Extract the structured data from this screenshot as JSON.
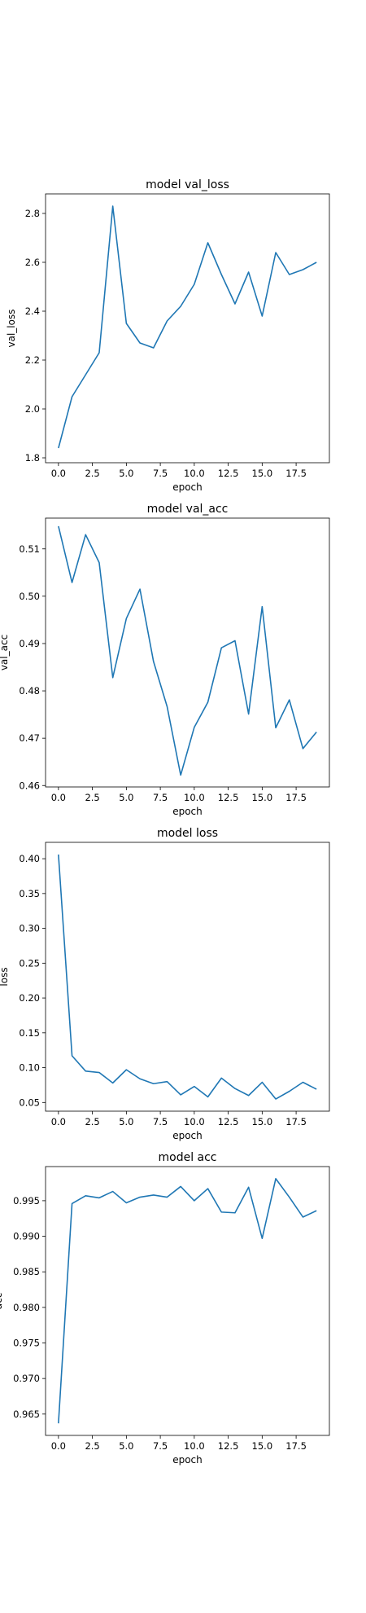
{
  "chart_data": [
    {
      "type": "line",
      "title": "model val_loss",
      "xlabel": "epoch",
      "ylabel": "val_loss",
      "xlim": [
        -0.95,
        19.95
      ],
      "ylim": [
        1.78,
        2.88
      ],
      "xticks": [
        0,
        2.5,
        5,
        7.5,
        10,
        12.5,
        15,
        17.5
      ],
      "xtick_labels": [
        "0.0",
        "2.5",
        "5.0",
        "7.5",
        "10.0",
        "12.5",
        "15.0",
        "17.5"
      ],
      "yticks": [
        1.8,
        2.0,
        2.2,
        2.4,
        2.6,
        2.8
      ],
      "ytick_labels": [
        "1.8",
        "2.0",
        "2.2",
        "2.4",
        "2.6",
        "2.8"
      ],
      "grid": false,
      "line_color": "#1f77b4",
      "x": [
        0,
        1,
        2,
        3,
        4,
        5,
        6,
        7,
        8,
        9,
        10,
        11,
        12,
        13,
        14,
        15,
        16,
        17,
        18,
        19
      ],
      "values": [
        1.84,
        2.05,
        2.14,
        2.23,
        2.83,
        2.35,
        2.27,
        2.25,
        2.36,
        2.42,
        2.51,
        2.68,
        2.55,
        2.43,
        2.56,
        2.38,
        2.64,
        2.55,
        2.57,
        2.6
      ]
    },
    {
      "type": "line",
      "title": "model val_acc",
      "xlabel": "epoch",
      "ylabel": "val_acc",
      "xlim": [
        -0.95,
        19.95
      ],
      "ylim": [
        0.4597,
        0.5165
      ],
      "xticks": [
        0,
        2.5,
        5,
        7.5,
        10,
        12.5,
        15,
        17.5
      ],
      "xtick_labels": [
        "0.0",
        "2.5",
        "5.0",
        "7.5",
        "10.0",
        "12.5",
        "15.0",
        "17.5"
      ],
      "yticks": [
        0.46,
        0.47,
        0.48,
        0.49,
        0.5,
        0.51
      ],
      "ytick_labels": [
        "0.46",
        "0.47",
        "0.48",
        "0.49",
        "0.50",
        "0.51"
      ],
      "grid": false,
      "line_color": "#1f77b4",
      "x": [
        0,
        1,
        2,
        3,
        4,
        5,
        6,
        7,
        8,
        9,
        10,
        11,
        12,
        13,
        14,
        15,
        16,
        17,
        18,
        19
      ],
      "values": [
        0.5148,
        0.5029,
        0.513,
        0.5071,
        0.4828,
        0.4953,
        0.5015,
        0.4862,
        0.4767,
        0.4622,
        0.4723,
        0.4776,
        0.4891,
        0.4906,
        0.4751,
        0.4978,
        0.4722,
        0.4781,
        0.4678,
        0.4713
      ]
    },
    {
      "type": "line",
      "title": "model loss",
      "xlabel": "epoch",
      "ylabel": "loss",
      "xlim": [
        -0.95,
        19.95
      ],
      "ylim": [
        0.0375,
        0.4235
      ],
      "xticks": [
        0,
        2.5,
        5,
        7.5,
        10,
        12.5,
        15,
        17.5
      ],
      "xtick_labels": [
        "0.0",
        "2.5",
        "5.0",
        "7.5",
        "10.0",
        "12.5",
        "15.0",
        "17.5"
      ],
      "yticks": [
        0.05,
        0.1,
        0.15,
        0.2,
        0.25,
        0.3,
        0.35,
        0.4
      ],
      "ytick_labels": [
        "0.05",
        "0.10",
        "0.15",
        "0.20",
        "0.25",
        "0.30",
        "0.35",
        "0.40"
      ],
      "grid": false,
      "line_color": "#1f77b4",
      "x": [
        0,
        1,
        2,
        3,
        4,
        5,
        6,
        7,
        8,
        9,
        10,
        11,
        12,
        13,
        14,
        15,
        16,
        17,
        18,
        19
      ],
      "values": [
        0.406,
        0.117,
        0.095,
        0.093,
        0.078,
        0.097,
        0.084,
        0.077,
        0.08,
        0.061,
        0.073,
        0.058,
        0.085,
        0.07,
        0.06,
        0.079,
        0.055,
        0.066,
        0.079,
        0.069
      ]
    },
    {
      "type": "line",
      "title": "model acc",
      "xlabel": "epoch",
      "ylabel": "acc",
      "xlim": [
        -0.95,
        19.95
      ],
      "ylim": [
        0.962,
        0.9998
      ],
      "xticks": [
        0,
        2.5,
        5,
        7.5,
        10,
        12.5,
        15,
        17.5
      ],
      "xtick_labels": [
        "0.0",
        "2.5",
        "5.0",
        "7.5",
        "10.0",
        "12.5",
        "15.0",
        "17.5"
      ],
      "yticks": [
        0.965,
        0.97,
        0.975,
        0.98,
        0.985,
        0.99,
        0.995
      ],
      "ytick_labels": [
        "0.965",
        "0.970",
        "0.975",
        "0.980",
        "0.985",
        "0.990",
        "0.995"
      ],
      "grid": false,
      "line_color": "#1f77b4",
      "x": [
        0,
        1,
        2,
        3,
        4,
        5,
        6,
        7,
        8,
        9,
        10,
        11,
        12,
        13,
        14,
        15,
        16,
        17,
        18,
        19
      ],
      "values": [
        0.9637,
        0.9946,
        0.9957,
        0.9954,
        0.9963,
        0.9947,
        0.9955,
        0.9958,
        0.9955,
        0.997,
        0.995,
        0.9967,
        0.9934,
        0.9933,
        0.9969,
        0.9897,
        0.9981,
        0.9955,
        0.9927,
        0.9936
      ]
    }
  ]
}
